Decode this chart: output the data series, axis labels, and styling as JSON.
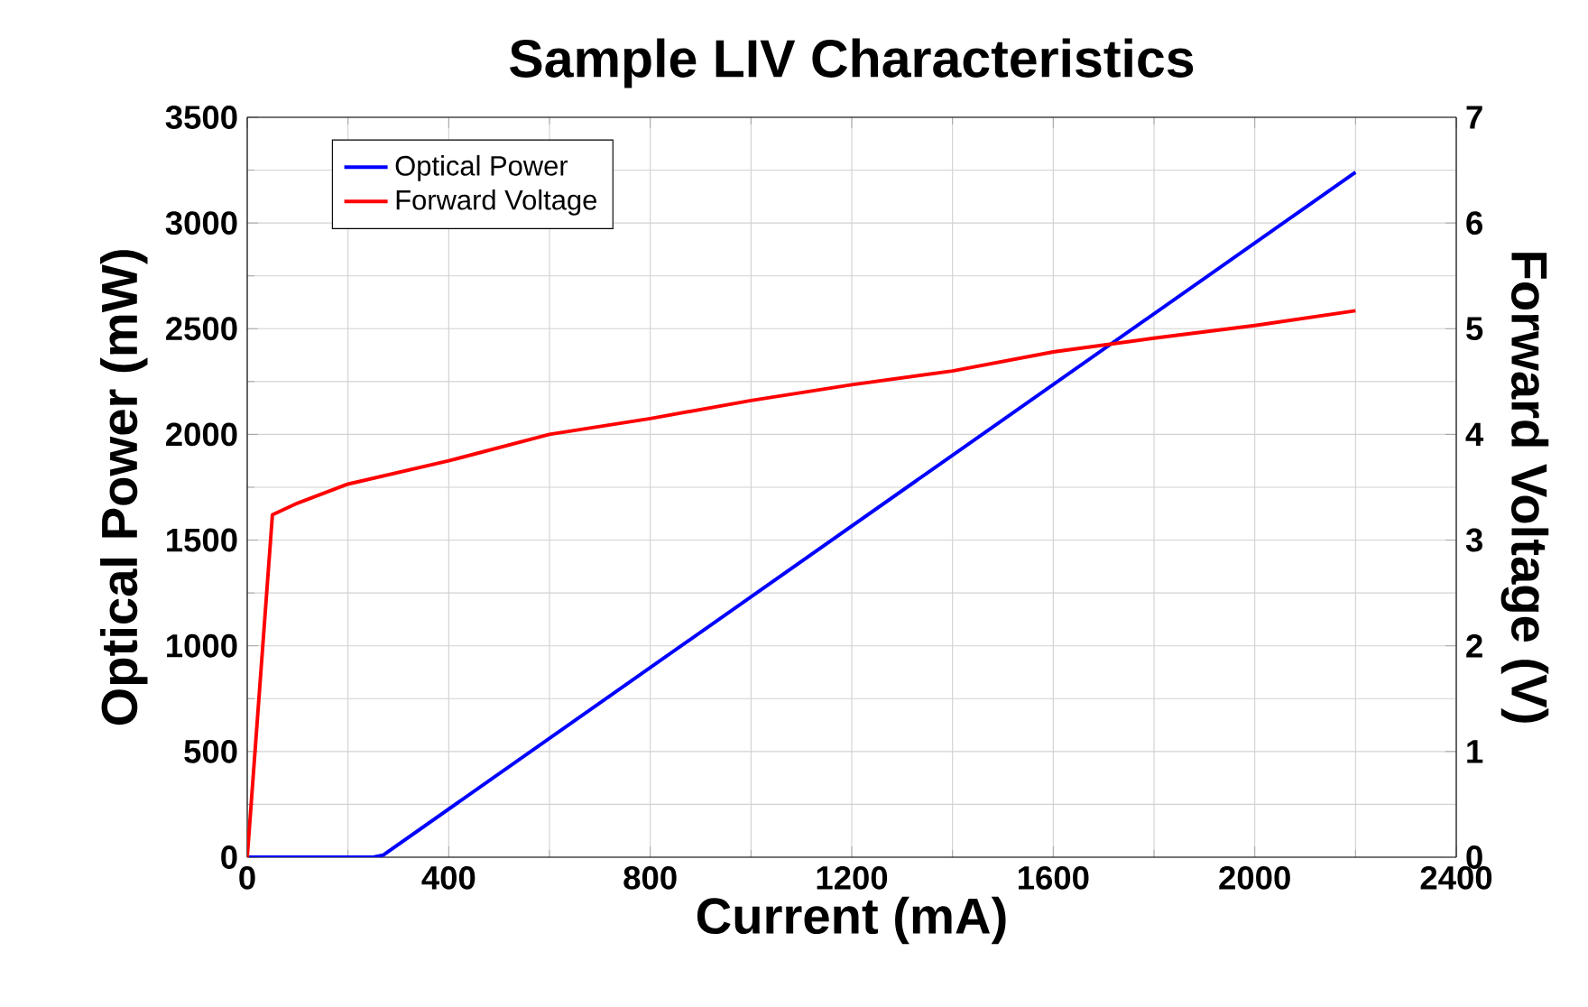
{
  "chart_data": {
    "type": "line",
    "title": "Sample LIV Characteristics",
    "xlabel": "Current (mA)",
    "ylabel": "Optical Power (mW)",
    "y2label": "Forward Voltage (V)",
    "series": [
      {
        "name": "Optical Power",
        "color": "#0000ff",
        "x": [
          0,
          250,
          270,
          2200
        ],
        "values": [
          0,
          0,
          10,
          3240
        ]
      },
      {
        "name": "Forward Voltage",
        "color": "#ff0000",
        "axis": "y2",
        "x": [
          0,
          50,
          100,
          200,
          400,
          600,
          800,
          1000,
          1200,
          1400,
          1600,
          1800,
          2000,
          2200
        ],
        "values": [
          0,
          3.24,
          3.35,
          3.53,
          3.75,
          4.0,
          4.15,
          4.32,
          4.47,
          4.6,
          4.78,
          4.91,
          5.03,
          5.17
        ]
      }
    ],
    "xlim": [
      0,
      2400
    ],
    "xticks": [
      0,
      400,
      800,
      1200,
      1600,
      2000,
      2400
    ],
    "ylim": [
      0,
      3500
    ],
    "yticks": [
      0,
      500,
      1000,
      1500,
      2000,
      2500,
      3000,
      3500
    ],
    "y2lim": [
      0,
      7
    ],
    "y2ticks": [
      0,
      1,
      2,
      3,
      4,
      5,
      6,
      7
    ],
    "grid": true,
    "legend": "top left"
  }
}
